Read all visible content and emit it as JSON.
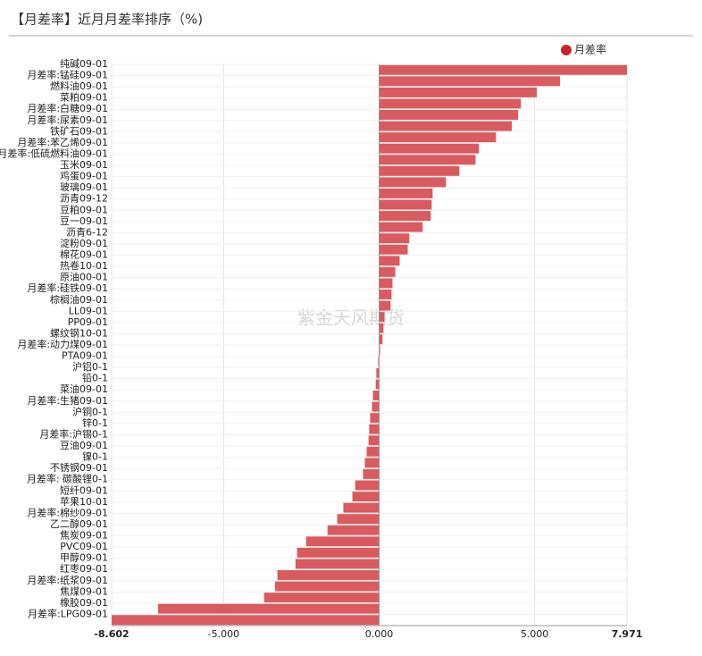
{
  "chart_data": {
    "type": "bar",
    "orientation": "horizontal",
    "title": "【月差率】近月月差率排序（%)",
    "watermark": "紫金天风期货",
    "categories": [
      "纯碱09-01",
      "月差率:锰硅09-01",
      "燃料油09-01",
      "菜粕09-01",
      "月差率:白糖09-01",
      "月差率:尿素09-01",
      "铁矿石09-01",
      "月差率:苯乙烯09-01",
      "月差率:低硫燃料油09-01",
      "玉米09-01",
      "鸡蛋09-01",
      "玻璃09-01",
      "沥青09-12",
      "豆粕09-01",
      "豆一09-01",
      "沥青6-12",
      "淀粉09-01",
      "棉花09-01",
      "热卷10-01",
      "原油00-01",
      "月差率:硅铁09-01",
      "棕榈油09-01",
      "LL09-01",
      "PP09-01",
      "螺纹钢10-01",
      "月差率:动力煤09-01",
      "PTA09-01",
      "沪铝0-1",
      "铅0-1",
      "菜油09-01",
      "月差率:生猪09-01",
      "沪铜0-1",
      "锌0-1",
      "月差率:沪锡0-1",
      "豆油09-01",
      "镍0-1",
      "不锈钢09-01",
      "月差率: 碳酸锂0-1",
      "短纤09-01",
      "苹果10-01",
      "月差率:棉纱09-01",
      "乙二醇09-01",
      "焦炭09-01",
      "PVC09-01",
      "甲醇09-01",
      "红枣09-01",
      "月差率:纸浆09-01",
      "焦煤09-01",
      "橡胶09-01",
      "月差率:LPG09-01"
    ],
    "series": [
      {
        "name": "月差率",
        "color": "#d95b60",
        "values": [
          7.971,
          5.82,
          5.07,
          4.56,
          4.47,
          4.27,
          3.76,
          3.21,
          3.1,
          2.58,
          2.15,
          1.72,
          1.69,
          1.66,
          1.4,
          0.97,
          0.92,
          0.66,
          0.52,
          0.43,
          0.4,
          0.37,
          0.17,
          0.14,
          0.11,
          0.03,
          -0.03,
          -0.09,
          -0.11,
          -0.2,
          -0.23,
          -0.29,
          -0.32,
          -0.34,
          -0.4,
          -0.46,
          -0.52,
          -0.77,
          -0.86,
          -1.15,
          -1.35,
          -1.66,
          -2.35,
          -2.64,
          -2.69,
          -3.27,
          -3.35,
          -3.7,
          -7.11,
          -8.602
        ]
      }
    ],
    "xlim": [
      -8.602,
      7.971
    ],
    "xticks": [
      {
        "value": -8.602,
        "label": "-8.602"
      },
      {
        "value": -5,
        "label": "-5.000"
      },
      {
        "value": 0,
        "label": "0.000"
      },
      {
        "value": 5,
        "label": "5.000"
      },
      {
        "value": 7.971,
        "label": "7.971"
      }
    ],
    "grid": true,
    "legend": "top-right"
  }
}
